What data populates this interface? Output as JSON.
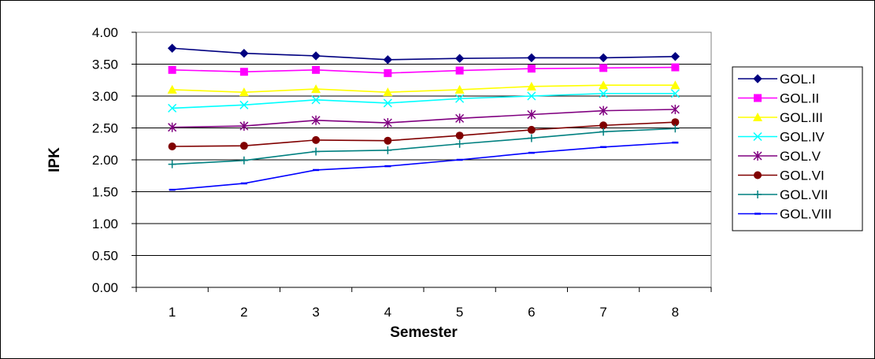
{
  "chart_data": {
    "type": "line",
    "xlabel": "Semester",
    "ylabel": "IPK",
    "categories": [
      "1",
      "2",
      "3",
      "4",
      "5",
      "6",
      "7",
      "8"
    ],
    "ylim": [
      0,
      4
    ],
    "y_ticks": [
      "0.00",
      "0.50",
      "1.00",
      "1.50",
      "2.00",
      "2.50",
      "3.00",
      "3.50",
      "4.00"
    ],
    "grid": "horizontal",
    "legend_position": "right",
    "series": [
      {
        "name": "GOL.I",
        "color": "#000080",
        "marker": "diamond",
        "values": [
          3.75,
          3.67,
          3.63,
          3.57,
          3.59,
          3.6,
          3.6,
          3.62
        ]
      },
      {
        "name": "GOL.II",
        "color": "#ff00ff",
        "marker": "square",
        "values": [
          3.41,
          3.38,
          3.41,
          3.36,
          3.4,
          3.43,
          3.44,
          3.45
        ]
      },
      {
        "name": "GOL.III",
        "color": "#ffff00",
        "marker": "triangle",
        "values": [
          3.1,
          3.06,
          3.11,
          3.06,
          3.1,
          3.15,
          3.17,
          3.17
        ]
      },
      {
        "name": "GOL.IV",
        "color": "#00ffff",
        "marker": "x",
        "values": [
          2.81,
          2.86,
          2.94,
          2.89,
          2.96,
          3.0,
          3.04,
          3.04
        ]
      },
      {
        "name": "GOL.V",
        "color": "#800080",
        "marker": "star",
        "values": [
          2.51,
          2.53,
          2.62,
          2.58,
          2.65,
          2.71,
          2.77,
          2.79
        ]
      },
      {
        "name": "GOL.VI",
        "color": "#800000",
        "marker": "circle",
        "values": [
          2.21,
          2.22,
          2.31,
          2.3,
          2.38,
          2.47,
          2.54,
          2.59
        ]
      },
      {
        "name": "GOL.VII",
        "color": "#008080",
        "marker": "plus",
        "values": [
          1.93,
          1.99,
          2.13,
          2.15,
          2.25,
          2.34,
          2.44,
          2.49
        ]
      },
      {
        "name": "GOL.VIII",
        "color": "#0000ff",
        "marker": "dash",
        "values": [
          1.53,
          1.63,
          1.84,
          1.9,
          2.0,
          2.11,
          2.2,
          2.27
        ]
      }
    ]
  }
}
